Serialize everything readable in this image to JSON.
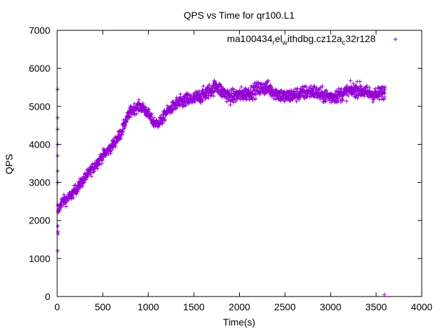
{
  "chart_data": {
    "type": "scatter",
    "title": "QPS vs Time for qr100.L1",
    "xlabel": "Time(s)",
    "ylabel": "QPS",
    "xlim": [
      0,
      4000
    ],
    "ylim": [
      0,
      7000
    ],
    "x_ticks": [
      0,
      500,
      1000,
      1500,
      2000,
      2500,
      3000,
      3500,
      4000
    ],
    "y_ticks": [
      0,
      1000,
      2000,
      3000,
      4000,
      5000,
      6000,
      7000
    ],
    "x_tick_labels": [
      "0",
      "500",
      "1000",
      "1500",
      "2000",
      "2500",
      "3000",
      "3500",
      "4000"
    ],
    "y_tick_labels": [
      "0",
      "1000",
      "2000",
      "3000",
      "4000",
      "5000",
      "6000",
      "7000"
    ],
    "grid": false,
    "legend_position": "top-right",
    "marker": "plus",
    "series": [
      {
        "name": "ma100434_rel_withdbg.cz12a_c32r128",
        "legend_parts": [
          {
            "text": "ma100434",
            "sub": false
          },
          {
            "text": "r",
            "sub": true
          },
          {
            "text": "el",
            "sub": false
          },
          {
            "text": "w",
            "sub": true
          },
          {
            "text": "ithdbg.cz12a",
            "sub": false
          },
          {
            "text": "c",
            "sub": true
          },
          {
            "text": "32r128",
            "sub": false
          }
        ],
        "color": "#9400d3",
        "trend": [
          [
            0,
            2000
          ],
          [
            20,
            2300
          ],
          [
            50,
            2500
          ],
          [
            100,
            2550
          ],
          [
            150,
            2650
          ],
          [
            200,
            2800
          ],
          [
            300,
            3100
          ],
          [
            400,
            3400
          ],
          [
            500,
            3700
          ],
          [
            600,
            3950
          ],
          [
            700,
            4300
          ],
          [
            750,
            4600
          ],
          [
            800,
            4850
          ],
          [
            850,
            4950
          ],
          [
            900,
            5000
          ],
          [
            950,
            4950
          ],
          [
            1000,
            4800
          ],
          [
            1050,
            4600
          ],
          [
            1100,
            4550
          ],
          [
            1150,
            4650
          ],
          [
            1200,
            4850
          ],
          [
            1250,
            4950
          ],
          [
            1300,
            5050
          ],
          [
            1400,
            5150
          ],
          [
            1500,
            5200
          ],
          [
            1600,
            5300
          ],
          [
            1700,
            5450
          ],
          [
            1750,
            5550
          ],
          [
            1800,
            5400
          ],
          [
            1900,
            5250
          ],
          [
            2000,
            5300
          ],
          [
            2100,
            5350
          ],
          [
            2200,
            5450
          ],
          [
            2300,
            5500
          ],
          [
            2400,
            5350
          ],
          [
            2500,
            5250
          ],
          [
            2600,
            5300
          ],
          [
            2700,
            5350
          ],
          [
            2800,
            5400
          ],
          [
            2900,
            5300
          ],
          [
            3000,
            5250
          ],
          [
            3100,
            5300
          ],
          [
            3200,
            5400
          ],
          [
            3300,
            5450
          ],
          [
            3400,
            5350
          ],
          [
            3500,
            5300
          ],
          [
            3550,
            5350
          ],
          [
            3600,
            5400
          ]
        ],
        "noise": 180,
        "outliers": [
          [
            5,
            5450
          ],
          [
            5,
            4700
          ],
          [
            5,
            4400
          ],
          [
            5,
            4000
          ],
          [
            5,
            3700
          ],
          [
            5,
            3300
          ],
          [
            5,
            3000
          ],
          [
            5,
            2400
          ],
          [
            8,
            1850
          ],
          [
            10,
            1700
          ],
          [
            12,
            1650
          ],
          [
            6,
            1200
          ],
          [
            3590,
            50
          ]
        ]
      }
    ]
  }
}
